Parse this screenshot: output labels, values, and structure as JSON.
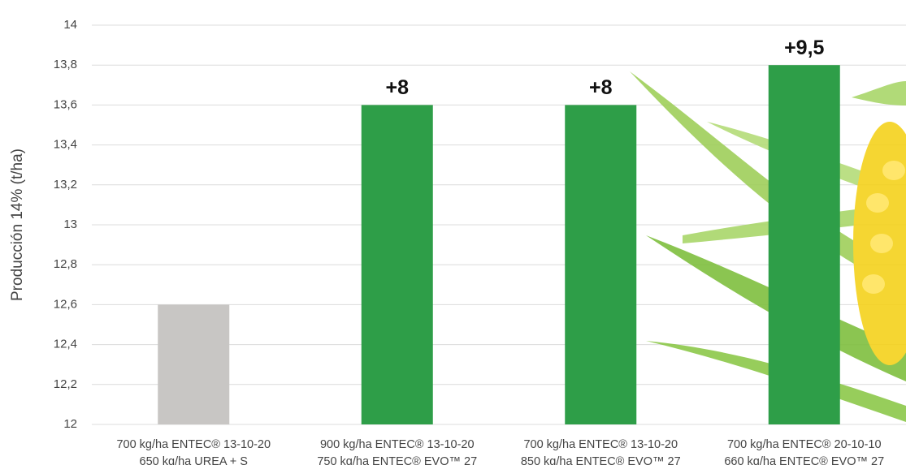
{
  "chart_data": {
    "type": "bar",
    "y_label": "Producción 14% (t/ha)",
    "categories": [
      [
        "700 kg/ha ENTEC® 13-10-20",
        "650 kg/ha UREA + S"
      ],
      [
        "900 kg/ha ENTEC® 13-10-20",
        "750 kg/ha ENTEC® EVO™ 27"
      ],
      [
        "700 kg/ha ENTEC® 13-10-20",
        "850 kg/ha ENTEC® EVO™ 27"
      ],
      [
        "700 kg/ha ENTEC® 20-10-10",
        "660 kg/ha ENTEC® EVO™ 27"
      ]
    ],
    "values": [
      12.6,
      13.6,
      13.6,
      13.8
    ],
    "bar_labels": [
      null,
      "+8",
      "+8",
      "+9,5"
    ],
    "colors": [
      "#c8c6c4",
      "#2e9e48",
      "#2e9e48",
      "#2e9e48"
    ],
    "ylim": [
      12,
      14
    ],
    "yticks": [
      12,
      {
        "value": 12.2,
        "label": "12,2"
      },
      {
        "value": 12.4,
        "label": "12,4"
      },
      {
        "value": 12.6,
        "label": "12,6"
      },
      {
        "value": 12.8,
        "label": "12,8"
      },
      13,
      {
        "value": 13.2,
        "label": "13,2"
      },
      {
        "value": 13.4,
        "label": "13,4"
      },
      {
        "value": 13.6,
        "label": "13,6"
      },
      {
        "value": 13.8,
        "label": "13,8"
      },
      14
    ],
    "grid": true
  }
}
